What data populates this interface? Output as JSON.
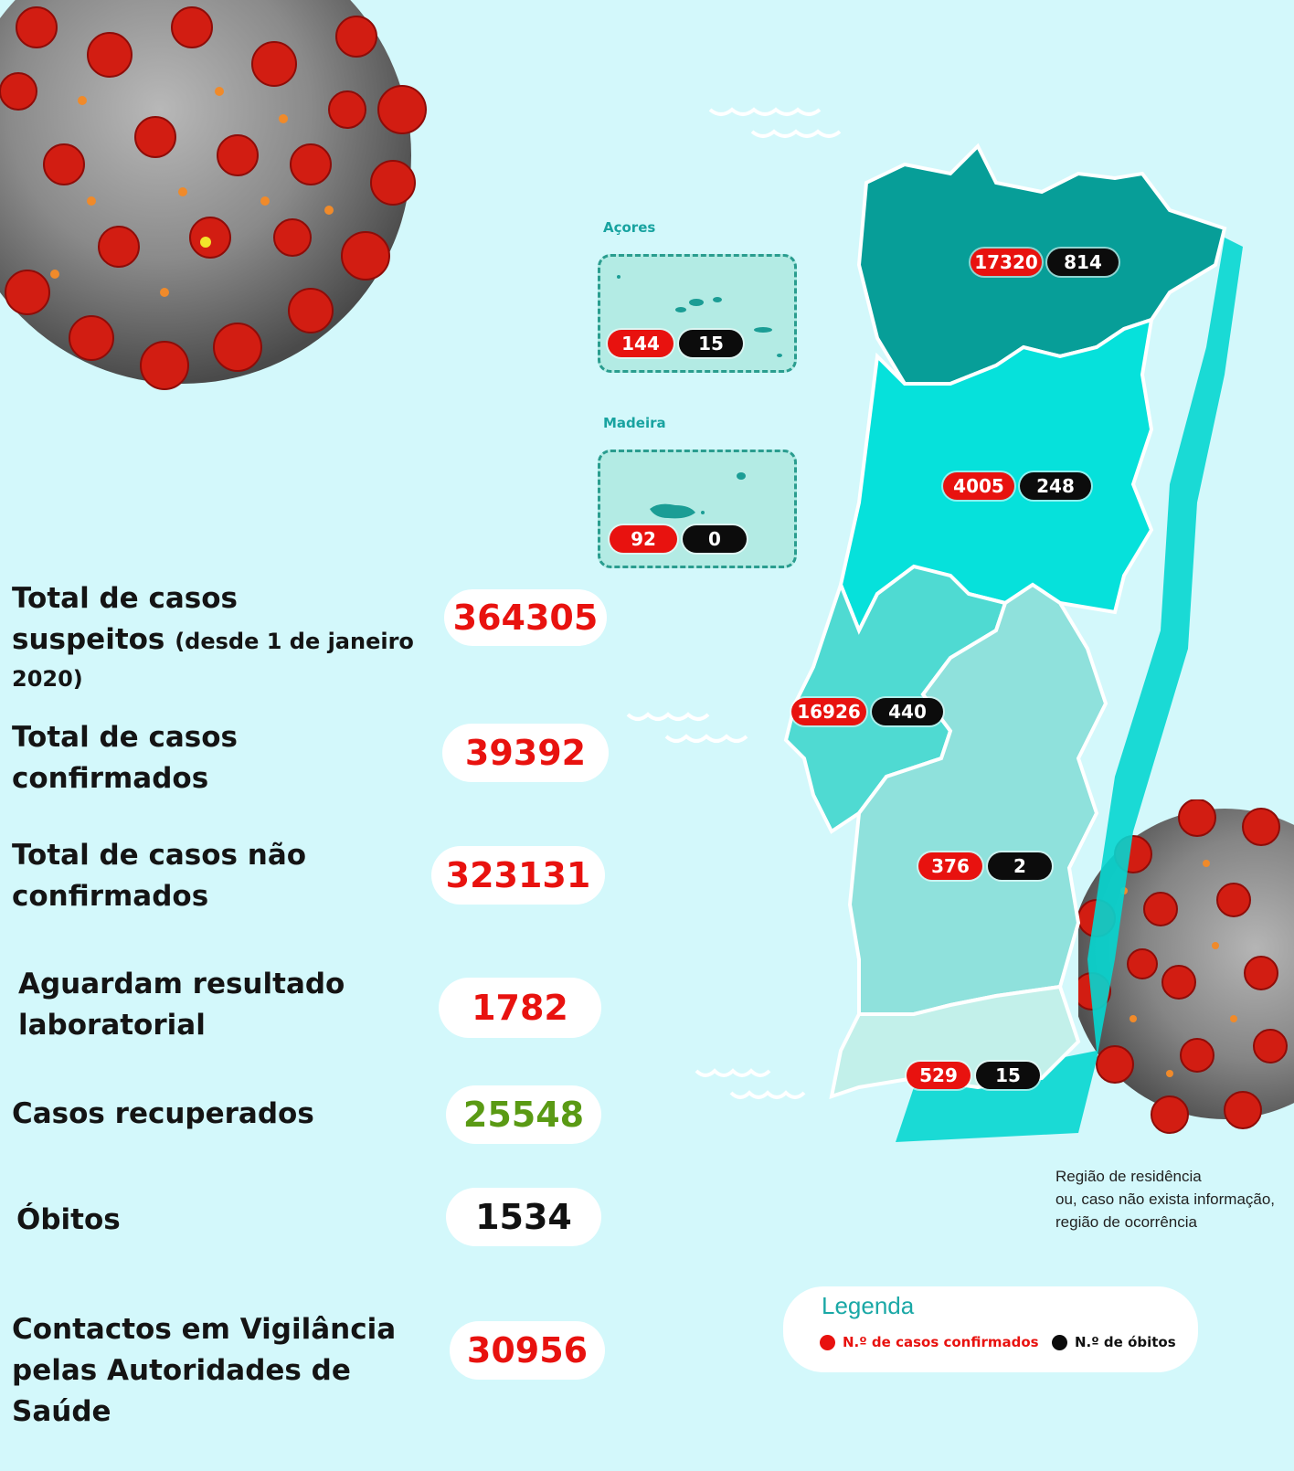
{
  "colors": {
    "background": "#d3f8fb",
    "red": "#e8120f",
    "green": "#5a9a14",
    "norte": "#079e98",
    "centro": "#06e1db",
    "lisboa": "#4fdad2",
    "alentejo": "#8fe1dc",
    "algarve": "#c2f0ea"
  },
  "stats": [
    {
      "label_line1": "Total de casos",
      "label_line2": "suspeitos",
      "label_sub": "(desde 1 de janeiro",
      "label_line3": "2020)",
      "value": "364305",
      "color": "red"
    },
    {
      "label_line1": "Total de casos",
      "label_line2": "confirmados",
      "value": "39392",
      "color": "red"
    },
    {
      "label_line1": "Total de casos não",
      "label_line2": "confirmados",
      "value": "323131",
      "color": "red"
    },
    {
      "label_line1": "Aguardam resultado",
      "label_line2": "laboratorial",
      "value": "1782",
      "color": "red"
    },
    {
      "label_line1": "Casos recuperados",
      "value": "25548",
      "color": "green"
    },
    {
      "label_line1": "Óbitos",
      "value": "1534",
      "color": "black"
    },
    {
      "label_line1": "Contactos em Vigilância",
      "label_line2": "pelas Autoridades de Saúde",
      "value": "30956",
      "color": "red"
    }
  ],
  "islands": [
    {
      "name": "Açores",
      "cases": "144",
      "deaths": "15"
    },
    {
      "name": "Madeira",
      "cases": "92",
      "deaths": "0"
    }
  ],
  "regions": [
    {
      "id": "norte",
      "cases": "17320",
      "deaths": "814"
    },
    {
      "id": "centro",
      "cases": "4005",
      "deaths": "248"
    },
    {
      "id": "lisboa",
      "cases": "16926",
      "deaths": "440"
    },
    {
      "id": "alentejo",
      "cases": "376",
      "deaths": "2"
    },
    {
      "id": "algarve",
      "cases": "529",
      "deaths": "15"
    }
  ],
  "note": {
    "line1": "Região de residência",
    "line2": "ou, caso não exista informação,",
    "line3": "região de ocorrência"
  },
  "legend": {
    "title": "Legenda",
    "cases_label": "N.º de casos confirmados",
    "deaths_label": "N.º de óbitos"
  },
  "icons": [
    "coronavirus-illustration",
    "wave-decoration"
  ]
}
